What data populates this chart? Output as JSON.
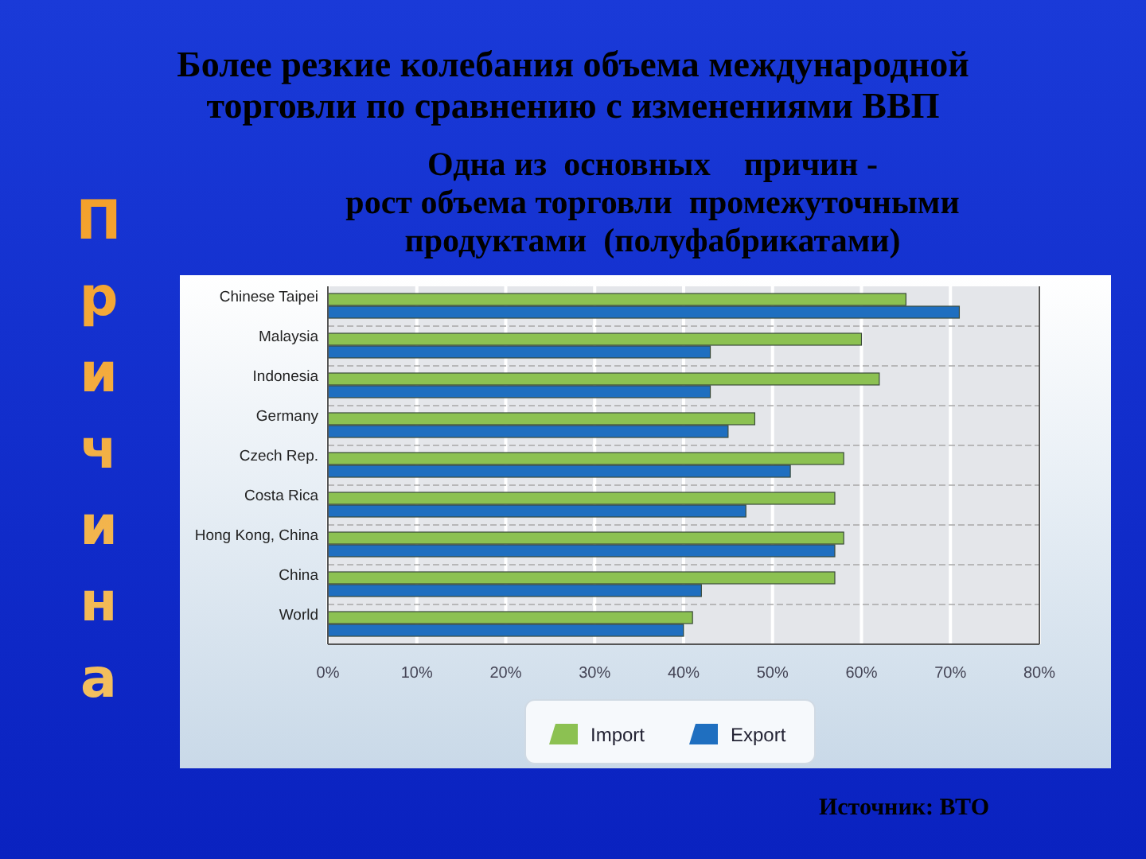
{
  "chart_data": {
    "type": "bar",
    "orientation": "horizontal",
    "title": "Более резкие колебания  объема международной\nторговли по сравнению с изменениями ВВП",
    "subtitle": "Одна из  основных    причин -\nрост объема торговли  промежуточными\nпродуктами  (полуфабрикатами)",
    "categories": [
      "Chinese Taipei",
      "Malaysia",
      "Indonesia",
      "Germany",
      "Czech Rep.",
      "Costa Rica",
      "Hong Kong, China",
      "China",
      "World"
    ],
    "series": [
      {
        "name": "Import",
        "color": "#8cc152",
        "values": [
          65,
          60,
          62,
          48,
          58,
          57,
          58,
          57,
          41
        ]
      },
      {
        "name": "Export",
        "color": "#1f6fc0",
        "values": [
          71,
          43,
          43,
          45,
          52,
          47,
          57,
          42,
          40
        ]
      }
    ],
    "xlim": [
      0,
      80
    ],
    "xticks": [
      {
        "value": 0,
        "label": "0%"
      },
      {
        "value": 10,
        "label": "10%"
      },
      {
        "value": 20,
        "label": "20%"
      },
      {
        "value": 30,
        "label": "30%"
      },
      {
        "value": 40,
        "label": "40%"
      },
      {
        "value": 50,
        "label": "50%"
      },
      {
        "value": 60,
        "label": "60%"
      },
      {
        "value": 70,
        "label": "70%"
      },
      {
        "value": 80,
        "label": "80%"
      }
    ],
    "grid": "x",
    "legend": "bottom",
    "annotations": [
      "Причина",
      "Источник: ВТО"
    ]
  }
}
